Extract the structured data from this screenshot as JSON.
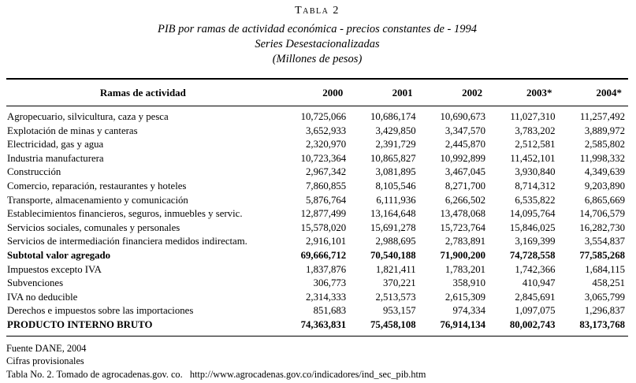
{
  "title": {
    "line1": "Tabla 2",
    "line2": "PIB por ramas de actividad económica - precios constantes de - 1994",
    "line3": "Series Desestacionalizadas",
    "line4": "(Millones de pesos)"
  },
  "table": {
    "headers": [
      "Ramas de actividad",
      "2000",
      "2001",
      "2002",
      "2003*",
      "2004*"
    ],
    "rows": [
      {
        "label": "Agropecuario, silvicultura, caza y pesca",
        "values": [
          "10,725,066",
          "10,686,174",
          "10,690,673",
          "11,027,310",
          "11,257,492"
        ],
        "bold": false
      },
      {
        "label": "Explotación de minas y canteras",
        "values": [
          "3,652,933",
          "3,429,850",
          "3,347,570",
          "3,783,202",
          "3,889,972"
        ],
        "bold": false
      },
      {
        "label": "Electricidad, gas y agua",
        "values": [
          "2,320,970",
          "2,391,729",
          "2,445,870",
          "2,512,581",
          "2,585,802"
        ],
        "bold": false
      },
      {
        "label": "Industria manufacturera",
        "values": [
          "10,723,364",
          "10,865,827",
          "10,992,899",
          "11,452,101",
          "11,998,332"
        ],
        "bold": false
      },
      {
        "label": "Construcción",
        "values": [
          "2,967,342",
          "3,081,895",
          "3,467,045",
          "3,930,840",
          "4,349,639"
        ],
        "bold": false
      },
      {
        "label": "Comercio, reparación, restaurantes y hoteles",
        "values": [
          "7,860,855",
          "8,105,546",
          "8,271,700",
          "8,714,312",
          "9,203,890"
        ],
        "bold": false
      },
      {
        "label": "Transporte, almacenamiento y comunicación",
        "values": [
          "5,876,764",
          "6,111,936",
          "6,266,502",
          "6,535,822",
          "6,865,669"
        ],
        "bold": false
      },
      {
        "label": "Establecimientos financieros, seguros, inmuebles y servic.",
        "values": [
          "12,877,499",
          "13,164,648",
          "13,478,068",
          "14,095,764",
          "14,706,579"
        ],
        "bold": false
      },
      {
        "label": "Servicios sociales, comunales y personales",
        "values": [
          "15,578,020",
          "15,691,278",
          "15,723,764",
          "15,846,025",
          "16,282,730"
        ],
        "bold": false
      },
      {
        "label": "Servicios de intermediación financiera medidos indirectam.",
        "values": [
          "2,916,101",
          "2,988,695",
          "2,783,891",
          "3,169,399",
          "3,554,837"
        ],
        "bold": false
      },
      {
        "label": "Subtotal valor agregado",
        "values": [
          "69,666,712",
          "70,540,188",
          "71,900,200",
          "74,728,558",
          "77,585,268"
        ],
        "bold": true
      },
      {
        "label": "Impuestos excepto IVA",
        "values": [
          "1,837,876",
          "1,821,411",
          "1,783,201",
          "1,742,366",
          "1,684,115"
        ],
        "bold": false
      },
      {
        "label": "Subvenciones",
        "values": [
          "306,773",
          "370,221",
          "358,910",
          "410,947",
          "458,251"
        ],
        "bold": false
      },
      {
        "label": "IVA no deducible",
        "values": [
          "2,314,333",
          "2,513,573",
          "2,615,309",
          "2,845,691",
          "3,065,799"
        ],
        "bold": false
      },
      {
        "label": "Derechos e impuestos sobre las importaciones",
        "values": [
          "851,683",
          "953,157",
          "974,334",
          "1,097,075",
          "1,296,837"
        ],
        "bold": false
      },
      {
        "label": "PRODUCTO INTERNO BRUTO",
        "values": [
          "74,363,831",
          "75,458,108",
          "76,914,134",
          "80,002,743",
          "83,173,768"
        ],
        "bold": true
      }
    ]
  },
  "footer": {
    "line1": "Fuente DANE, 2004",
    "line2": "Cifras provisionales",
    "line3": "Tabla No. 2. Tomado de agrocadenas.gov. co.   http://www.agrocadenas.gov.co/indicadores/ind_sec_pib.htm"
  }
}
